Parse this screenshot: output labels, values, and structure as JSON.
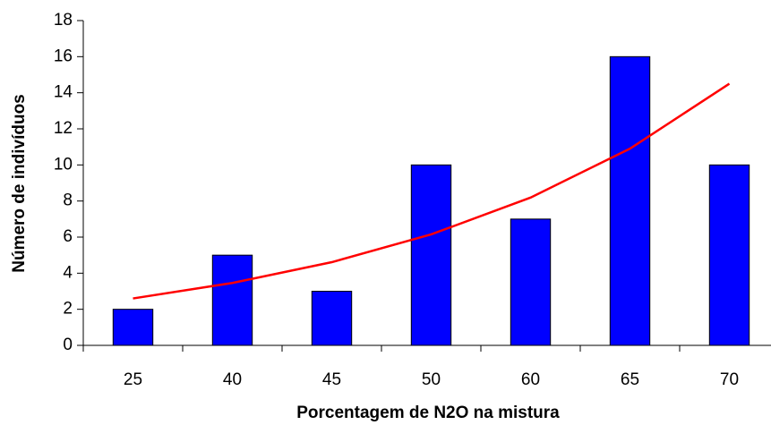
{
  "chart_data": {
    "type": "bar",
    "x_label": "Porcentagem de N2O na mistura",
    "y_label": "Número de indivíduos",
    "categories": [
      "25",
      "40",
      "45",
      "50",
      "60",
      "65",
      "70"
    ],
    "values": [
      2,
      5,
      3,
      10,
      7,
      16,
      10
    ],
    "color": "#0000ff",
    "trendline": {
      "color": "#ff0000",
      "values": [
        2.6,
        3.46,
        4.61,
        6.15,
        8.19,
        10.9,
        14.5
      ]
    },
    "ylim": [
      0,
      18
    ],
    "yticks": [
      0,
      2,
      4,
      6,
      8,
      10,
      12,
      14,
      16,
      18
    ],
    "grid": false
  }
}
